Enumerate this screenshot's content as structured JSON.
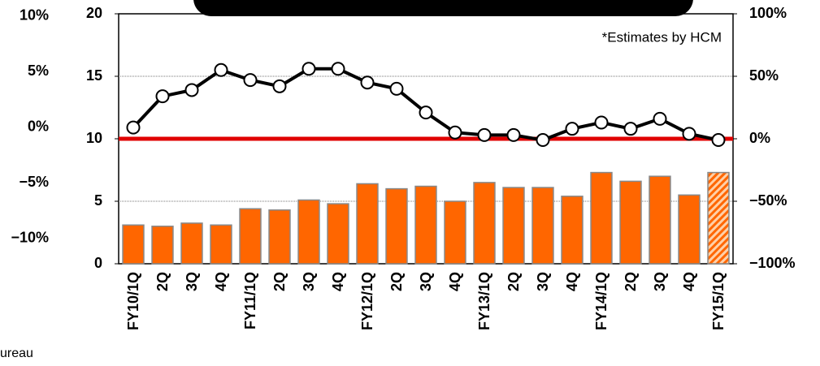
{
  "chart_data": {
    "type": "bar_line",
    "annotation": "*Estimates by HCM",
    "source": "ureau",
    "categories": [
      "FY10/1Q",
      "2Q",
      "3Q",
      "4Q",
      "FY11/1Q",
      "2Q",
      "3Q",
      "4Q",
      "FY12/1Q",
      "2Q",
      "3Q",
      "4Q",
      "FY13/1Q",
      "2Q",
      "3Q",
      "4Q",
      "FY14/1Q",
      "2Q",
      "3Q",
      "4Q",
      "FY15/1Q"
    ],
    "series": [
      {
        "type": "bar",
        "color": "#ff6600",
        "values": [
          3.1,
          3.0,
          3.25,
          3.1,
          4.4,
          4.3,
          5.1,
          4.8,
          6.4,
          6.0,
          6.2,
          5.0,
          6.5,
          6.1,
          6.1,
          5.4,
          7.3,
          6.6,
          7.0,
          5.5,
          7.3
        ]
      },
      {
        "type": "line",
        "axis": "y2",
        "color": "#000000",
        "values": [
          9,
          34,
          39,
          55,
          47,
          42,
          56,
          56,
          45,
          40,
          21,
          5,
          3,
          3,
          -1,
          8,
          13,
          8,
          16,
          4,
          -1
        ]
      }
    ],
    "hatched_indices": [
      20
    ],
    "reference_line": {
      "axis": "y2",
      "value": 0,
      "color": "#e00000"
    },
    "ylim": [
      0,
      20
    ],
    "yticks": [
      0,
      5,
      10,
      15,
      20
    ],
    "y2lim": [
      -100,
      100
    ],
    "y2ticks": [
      {
        "value": -100,
        "label": "−100%"
      },
      {
        "value": -50,
        "label": "−50%"
      },
      {
        "value": 0,
        "label": "0%"
      },
      {
        "value": 50,
        "label": "50%"
      },
      {
        "value": 100,
        "label": "100%"
      }
    ],
    "y3lim": [
      -12.3,
      10.2
    ],
    "y3ticks": [
      {
        "value": -10,
        "label": "−10%"
      },
      {
        "value": -5,
        "label": "−5%"
      },
      {
        "value": 0,
        "label": "0%"
      },
      {
        "value": 5,
        "label": "5%"
      },
      {
        "value": 10,
        "label": "10%"
      }
    ],
    "grid": true
  }
}
